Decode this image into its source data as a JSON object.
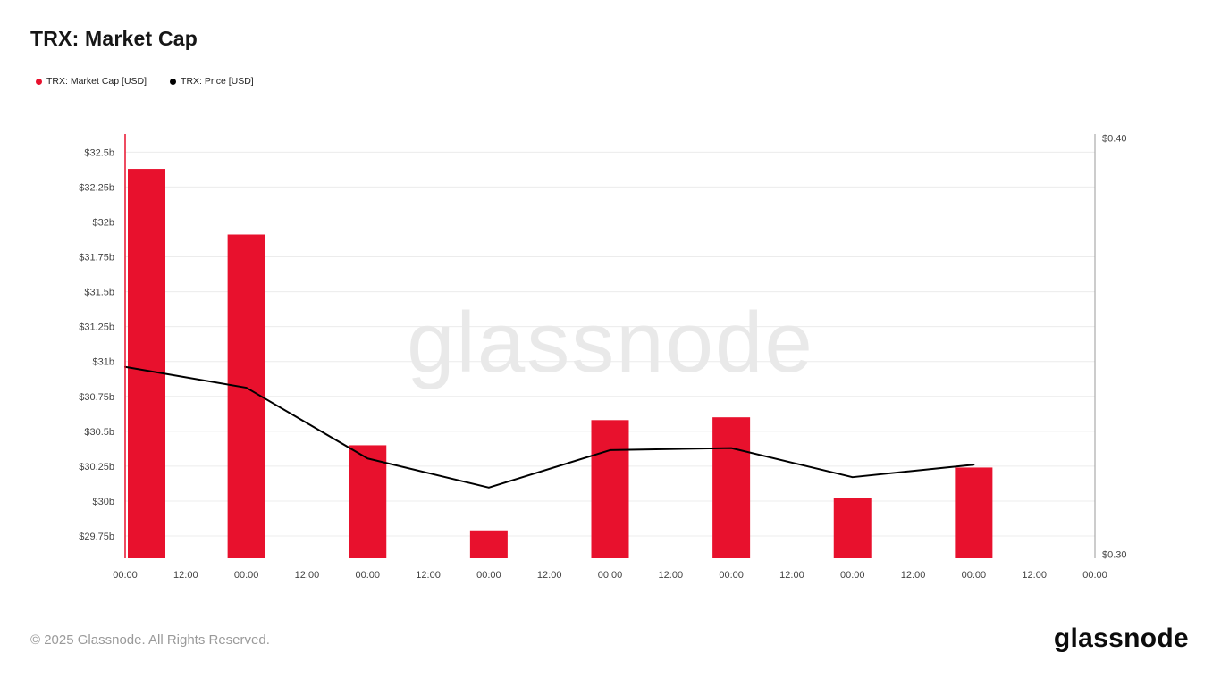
{
  "header": {
    "title": "TRX: Market Cap"
  },
  "legend": {
    "items": [
      {
        "label": "TRX: Market Cap [USD]",
        "color": "#e8112d"
      },
      {
        "label": "TRX: Price [USD]",
        "color": "#000000"
      }
    ]
  },
  "watermark": {
    "text": "glassnode"
  },
  "footer": {
    "copyright": "© 2025 Glassnode. All Rights Reserved.",
    "logo": "glassnode"
  },
  "chart_data": {
    "type": "bar+line",
    "title": "TRX: Market Cap",
    "x_tick_labels": [
      "00:00",
      "12:00",
      "00:00",
      "12:00",
      "00:00",
      "12:00",
      "00:00",
      "12:00",
      "00:00",
      "12:00",
      "00:00",
      "12:00",
      "00:00",
      "12:00",
      "00:00",
      "12:00",
      "00:00"
    ],
    "series": [
      {
        "name": "TRX: Market Cap [USD]",
        "type": "bar",
        "axis": "left",
        "color": "#e8112d",
        "tick_indices": [
          0,
          2,
          4,
          6,
          8,
          10,
          12,
          14
        ],
        "values": [
          32.38,
          31.91,
          30.4,
          29.79,
          30.58,
          30.6,
          30.02,
          30.24
        ],
        "unit": "USD billions"
      },
      {
        "name": "TRX: Price [USD]",
        "type": "line",
        "axis": "right",
        "color": "#000000",
        "tick_indices": [
          0,
          2,
          4,
          6,
          8,
          10,
          12,
          14
        ],
        "values": [
          0.345,
          0.34,
          0.323,
          0.316,
          0.325,
          0.3255,
          0.3185,
          0.3215
        ],
        "unit": "USD"
      }
    ],
    "left_axis": {
      "tick_values": [
        29.75,
        30,
        30.25,
        30.5,
        30.75,
        31,
        31.25,
        31.5,
        31.75,
        32,
        32.25,
        32.5
      ],
      "tick_labels": [
        "$29.75b",
        "$30b",
        "$30.25b",
        "$30.5b",
        "$30.75b",
        "$31b",
        "$31.25b",
        "$31.5b",
        "$31.75b",
        "$32b",
        "$32.25b",
        "$32.5b"
      ],
      "min": 29.59,
      "max": 32.63,
      "color": "#e8112d"
    },
    "right_axis": {
      "tick_values": [
        0.4,
        0.3
      ],
      "tick_labels": [
        "$0.40",
        "$0.30"
      ],
      "min": 0.299,
      "max": 0.401,
      "color": "#999999"
    },
    "grid": true,
    "grid_color": "#ececec",
    "legend_position": "top-left",
    "watermark": "glassnode"
  }
}
